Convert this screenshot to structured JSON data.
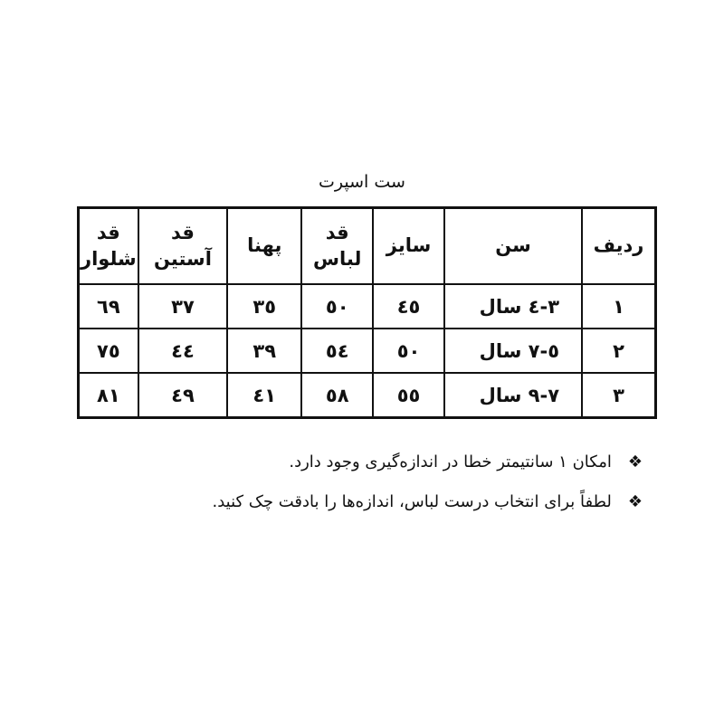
{
  "title": "ست اسپرت",
  "table": {
    "headers": [
      "ردیف",
      "سن",
      "سایز",
      "قد لباس",
      "پهنا",
      "قد آستین",
      "قد شلوار"
    ],
    "rows": [
      [
        "١",
        "٣-٤ سال",
        "٤٥",
        "٥٠",
        "٣٥",
        "٣٧",
        "٦٩"
      ],
      [
        "٢",
        "٥-٧ سال",
        "٥٠",
        "٥٤",
        "٣٩",
        "٤٤",
        "٧٥"
      ],
      [
        "٣",
        "٧-٩ سال",
        "٥٥",
        "٥٨",
        "٤١",
        "٤٩",
        "٨١"
      ]
    ]
  },
  "notes": [
    {
      "icon": "diamond-bullet-icon",
      "text": "امکان ١ سانتیمتر خطا در اندازه‌گیری وجود دارد."
    },
    {
      "icon": "diamond-bullet-icon",
      "text": "لطفاً برای انتخاب درست لباس، اندازه‌ها را بادقت چک کنید."
    }
  ]
}
